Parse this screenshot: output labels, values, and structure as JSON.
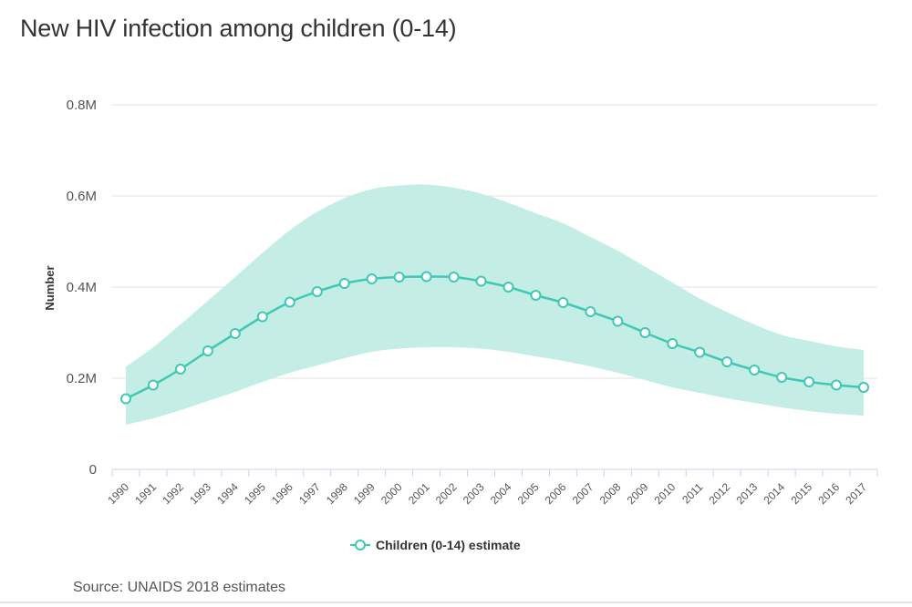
{
  "chart_data": {
    "type": "line",
    "title": "New HIV infection among children (0-14)",
    "ylabel": "Number",
    "xlabel": "",
    "ylim": [
      0,
      800000
    ],
    "y_ticks": [
      {
        "value": 0,
        "label": "0"
      },
      {
        "value": 200000,
        "label": "0.2M"
      },
      {
        "value": 400000,
        "label": "0.4M"
      },
      {
        "value": 600000,
        "label": "0.6M"
      },
      {
        "value": 800000,
        "label": "0.8M"
      }
    ],
    "categories": [
      "1990",
      "1991",
      "1992",
      "1993",
      "1994",
      "1995",
      "1996",
      "1997",
      "1998",
      "1999",
      "2000",
      "2001",
      "2002",
      "2003",
      "2004",
      "2005",
      "2006",
      "2007",
      "2008",
      "2009",
      "2010",
      "2011",
      "2012",
      "2013",
      "2014",
      "2015",
      "2016",
      "2017"
    ],
    "series": [
      {
        "name": "Children (0-14) estimate",
        "values": [
          155000,
          185000,
          220000,
          260000,
          298000,
          335000,
          367000,
          390000,
          408000,
          418000,
          422000,
          423000,
          422000,
          413000,
          400000,
          382000,
          366000,
          346000,
          325000,
          300000,
          276000,
          257000,
          236000,
          218000,
          202000,
          192000,
          185000,
          180000
        ],
        "lower": [
          98000,
          112000,
          130000,
          150000,
          170000,
          192000,
          212000,
          228000,
          244000,
          258000,
          265000,
          268000,
          268000,
          265000,
          258000,
          248000,
          238000,
          226000,
          212000,
          196000,
          180000,
          168000,
          156000,
          146000,
          136000,
          128000,
          122000,
          118000
        ],
        "upper": [
          225000,
          268000,
          318000,
          370000,
          422000,
          475000,
          525000,
          565000,
          595000,
          615000,
          623000,
          625000,
          618000,
          605000,
          585000,
          562000,
          540000,
          510000,
          480000,
          445000,
          410000,
          375000,
          345000,
          318000,
          295000,
          282000,
          270000,
          262000
        ]
      }
    ],
    "grid": true,
    "legend": "bottom-center",
    "colors": {
      "line": "#3fc8b4",
      "band": "#c4ede6",
      "grid": "#e3e3e3",
      "axis": "#c8d4e4"
    }
  },
  "source": "Source: UNAIDS 2018 estimates"
}
